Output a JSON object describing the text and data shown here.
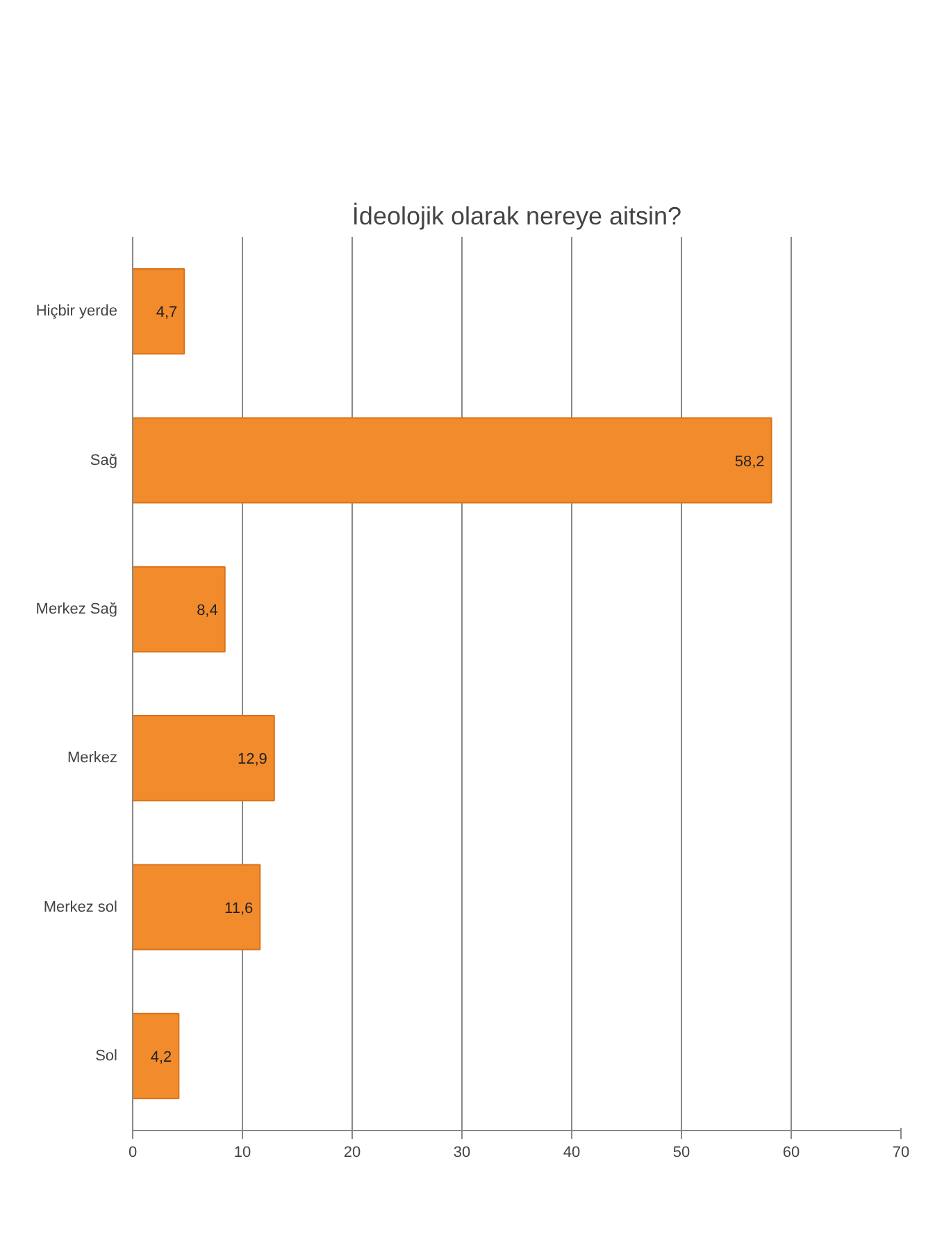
{
  "chart_data": {
    "type": "bar",
    "orientation": "horizontal",
    "title": "İdeolojik olarak nereye aitsin?",
    "categories": [
      "Hiçbir yerde",
      "Sağ",
      "Merkez Sağ",
      "Merkez",
      "Merkez sol",
      "Sol"
    ],
    "values": [
      4.7,
      58.2,
      8.4,
      12.9,
      11.6,
      4.2
    ],
    "value_labels": [
      "4,7",
      "58,2",
      "8,4",
      "12,9",
      "11,6",
      "4,2"
    ],
    "color": "#f28b2c",
    "xlim": [
      0,
      70
    ],
    "xticks": [
      0,
      10,
      20,
      30,
      40,
      50,
      60,
      70
    ],
    "grid": "x"
  }
}
